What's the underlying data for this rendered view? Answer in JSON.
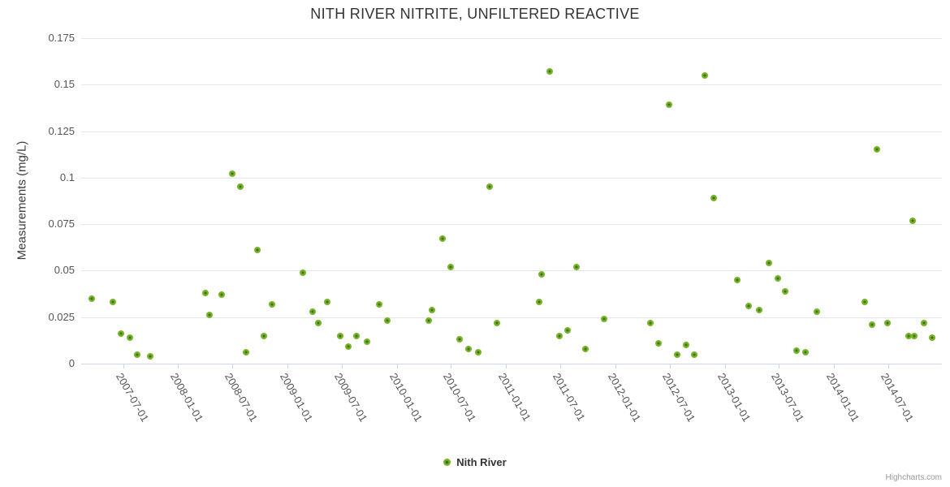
{
  "credit": "Highcharts.com",
  "chart_data": {
    "type": "scatter",
    "title": "NITH RIVER NITRITE, UNFILTERED REACTIVE",
    "xlabel": "",
    "ylabel": "Measurements (mg/L)",
    "ylim": [
      0,
      0.175
    ],
    "y_ticks": [
      0,
      0.025,
      0.05,
      0.075,
      0.1,
      0.125,
      0.15,
      0.175
    ],
    "x_range": [
      "2007-02-11",
      "2014-12-28"
    ],
    "x_ticks": [
      "2007-07-01",
      "2008-01-01",
      "2008-07-01",
      "2009-01-01",
      "2009-07-01",
      "2010-01-01",
      "2010-07-01",
      "2011-01-01",
      "2011-07-01",
      "2012-01-01",
      "2012-07-01",
      "2013-01-01",
      "2013-07-01",
      "2014-01-01",
      "2014-07-01"
    ],
    "grid": "horizontal-only",
    "legend_position": "bottom-center",
    "colors": {
      "marker_outer": "#77b32a",
      "marker_inner": "#3d7405",
      "grid": "#e6e6e6",
      "axis_line": "#ccd6eb",
      "label": "#555555",
      "title": "#333333"
    },
    "series": [
      {
        "name": "Nith River",
        "points": [
          [
            "2007-03-19",
            0.035
          ],
          [
            "2007-05-28",
            0.033
          ],
          [
            "2007-06-25",
            0.016
          ],
          [
            "2007-07-23",
            0.014
          ],
          [
            "2007-08-18",
            0.005
          ],
          [
            "2007-10-01",
            0.004
          ],
          [
            "2008-04-01",
            0.038
          ],
          [
            "2008-04-14",
            0.026
          ],
          [
            "2008-05-26",
            0.037
          ],
          [
            "2008-06-29",
            0.102
          ],
          [
            "2008-07-28",
            0.095
          ],
          [
            "2008-08-16",
            0.006
          ],
          [
            "2008-09-23",
            0.061
          ],
          [
            "2008-10-15",
            0.015
          ],
          [
            "2008-11-11",
            0.032
          ],
          [
            "2009-02-21",
            0.049
          ],
          [
            "2009-03-26",
            0.028
          ],
          [
            "2009-04-13",
            0.022
          ],
          [
            "2009-05-14",
            0.033
          ],
          [
            "2009-06-27",
            0.015
          ],
          [
            "2009-07-22",
            0.009
          ],
          [
            "2009-08-20",
            0.015
          ],
          [
            "2009-09-23",
            0.012
          ],
          [
            "2009-11-02",
            0.032
          ],
          [
            "2009-12-01",
            0.023
          ],
          [
            "2010-04-18",
            0.023
          ],
          [
            "2010-04-29",
            0.029
          ],
          [
            "2010-06-03",
            0.067
          ],
          [
            "2010-06-29",
            0.052
          ],
          [
            "2010-07-30",
            0.013
          ],
          [
            "2010-08-29",
            0.008
          ],
          [
            "2010-10-01",
            0.006
          ],
          [
            "2010-11-07",
            0.095
          ],
          [
            "2010-12-02",
            0.022
          ],
          [
            "2011-04-23",
            0.033
          ],
          [
            "2011-05-01",
            0.048
          ],
          [
            "2011-05-28",
            0.157
          ],
          [
            "2011-06-29",
            0.015
          ],
          [
            "2011-07-27",
            0.018
          ],
          [
            "2011-08-24",
            0.052
          ],
          [
            "2011-09-23",
            0.008
          ],
          [
            "2011-11-26",
            0.024
          ],
          [
            "2012-04-28",
            0.022
          ],
          [
            "2012-05-26",
            0.011
          ],
          [
            "2012-06-29",
            0.139
          ],
          [
            "2012-07-26",
            0.005
          ],
          [
            "2012-08-25",
            0.01
          ],
          [
            "2012-09-21",
            0.005
          ],
          [
            "2012-10-26",
            0.155
          ],
          [
            "2012-11-25",
            0.089
          ],
          [
            "2013-02-12",
            0.045
          ],
          [
            "2013-03-21",
            0.031
          ],
          [
            "2013-04-26",
            0.029
          ],
          [
            "2013-05-28",
            0.054
          ],
          [
            "2013-06-29",
            0.046
          ],
          [
            "2013-07-22",
            0.039
          ],
          [
            "2013-08-28",
            0.007
          ],
          [
            "2013-09-29",
            0.006
          ],
          [
            "2013-11-06",
            0.028
          ],
          [
            "2014-04-14",
            0.033
          ],
          [
            "2014-05-08",
            0.021
          ],
          [
            "2014-05-24",
            0.115
          ],
          [
            "2014-06-29",
            0.022
          ],
          [
            "2014-09-07",
            0.015
          ],
          [
            "2014-09-21",
            0.077
          ],
          [
            "2014-09-28",
            0.015
          ],
          [
            "2014-10-28",
            0.022
          ],
          [
            "2014-11-25",
            0.014
          ]
        ]
      }
    ]
  }
}
